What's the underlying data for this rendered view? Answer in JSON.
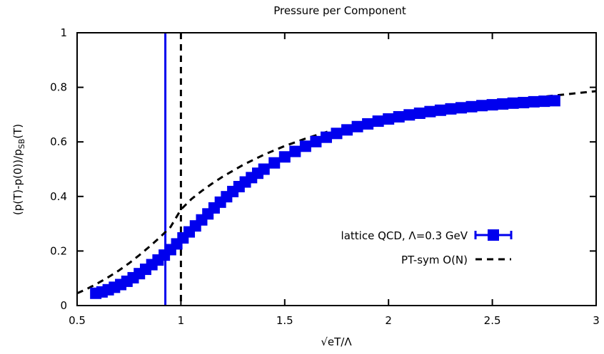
{
  "chart_data": {
    "type": "scatter",
    "title": "Pressure per Component",
    "xlabel": "√eT/Λ",
    "ylabel": "(p(T)-p(0))/p",
    "ylabel_subscript": "SB",
    "ylabel_suffix": "(T)",
    "xlim": [
      0.5,
      3.0
    ],
    "ylim": [
      0.0,
      1.0
    ],
    "xticks": [
      0.5,
      1.0,
      1.5,
      2.0,
      2.5,
      3.0
    ],
    "xtick_labels": [
      "0.5",
      "1",
      "1.5",
      "2",
      "2.5",
      "3"
    ],
    "yticks": [
      0.0,
      0.2,
      0.4,
      0.6,
      0.8,
      1.0
    ],
    "ytick_labels": [
      "0",
      "0.2",
      "0.4",
      "0.6",
      "0.8",
      "1"
    ],
    "grid": false,
    "legend_position": "bottom-right",
    "vertical_lines": [
      {
        "x": 0.925,
        "style": "solid",
        "color": "#0000ee"
      },
      {
        "x": 1.0,
        "style": "dashed",
        "color": "#000000"
      }
    ],
    "series": [
      {
        "name": "lattice QCD, Λ=0.3 GeV",
        "style": "markers",
        "color": "#0000ee",
        "x": [
          0.59,
          0.62,
          0.65,
          0.68,
          0.71,
          0.74,
          0.77,
          0.8,
          0.83,
          0.86,
          0.89,
          0.92,
          0.95,
          0.98,
          1.01,
          1.04,
          1.07,
          1.1,
          1.13,
          1.16,
          1.19,
          1.22,
          1.25,
          1.28,
          1.31,
          1.34,
          1.37,
          1.4,
          1.45,
          1.5,
          1.55,
          1.6,
          1.65,
          1.7,
          1.75,
          1.8,
          1.85,
          1.9,
          1.95,
          2.0,
          2.05,
          2.1,
          2.15,
          2.2,
          2.25,
          2.3,
          2.35,
          2.4,
          2.45,
          2.5,
          2.55,
          2.6,
          2.65,
          2.7,
          2.75,
          2.8
        ],
        "y": [
          0.045,
          0.05,
          0.058,
          0.067,
          0.077,
          0.089,
          0.102,
          0.117,
          0.133,
          0.15,
          0.167,
          0.185,
          0.205,
          0.226,
          0.248,
          0.27,
          0.292,
          0.314,
          0.336,
          0.358,
          0.379,
          0.399,
          0.418,
          0.436,
          0.453,
          0.469,
          0.485,
          0.5,
          0.523,
          0.545,
          0.565,
          0.584,
          0.601,
          0.617,
          0.631,
          0.644,
          0.656,
          0.666,
          0.676,
          0.684,
          0.692,
          0.699,
          0.705,
          0.711,
          0.716,
          0.721,
          0.725,
          0.729,
          0.733,
          0.736,
          0.739,
          0.742,
          0.744,
          0.747,
          0.749,
          0.751
        ]
      },
      {
        "name": "PT-sym O(N)",
        "style": "dashed-line",
        "color": "#000000",
        "x": [
          0.5,
          0.55,
          0.6,
          0.65,
          0.7,
          0.75,
          0.8,
          0.85,
          0.9,
          0.95,
          1.0,
          1.05,
          1.1,
          1.15,
          1.2,
          1.3,
          1.4,
          1.5,
          1.6,
          1.7,
          1.8,
          1.9,
          2.0,
          2.1,
          2.2,
          2.3,
          2.4,
          2.5,
          2.6,
          2.7,
          2.8,
          2.9,
          3.0
        ],
        "y": [
          0.045,
          0.062,
          0.082,
          0.104,
          0.128,
          0.155,
          0.185,
          0.217,
          0.251,
          0.288,
          0.352,
          0.39,
          0.42,
          0.447,
          0.472,
          0.516,
          0.553,
          0.585,
          0.612,
          0.636,
          0.656,
          0.674,
          0.689,
          0.703,
          0.715,
          0.726,
          0.736,
          0.745,
          0.754,
          0.762,
          0.77,
          0.778,
          0.786
        ]
      }
    ]
  }
}
